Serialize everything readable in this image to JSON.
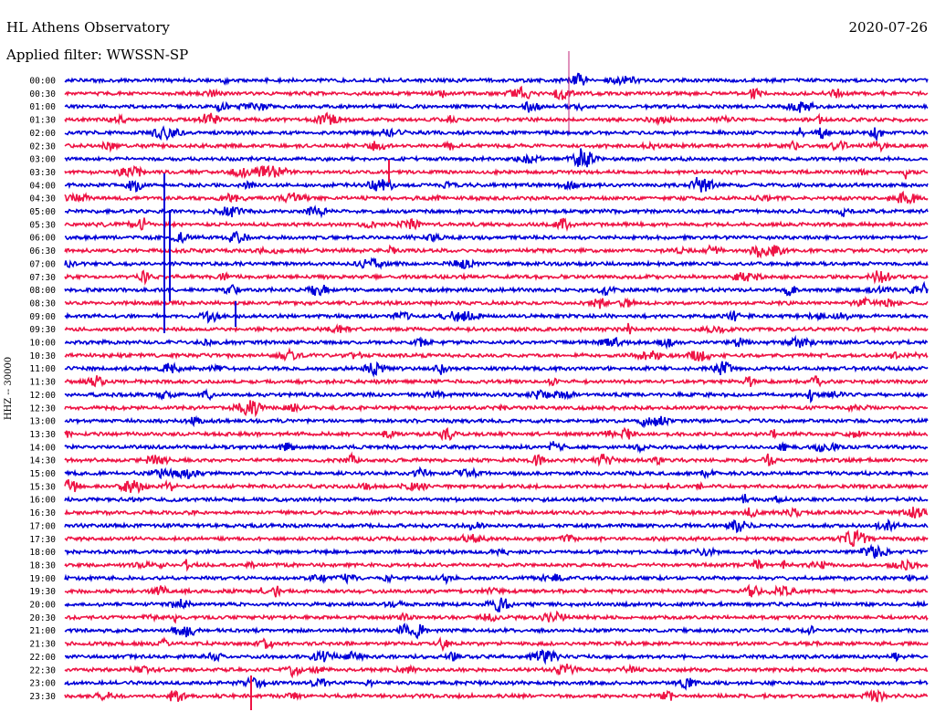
{
  "header": {
    "station": "HL Athens Observatory",
    "filter": "Applied filter: WWSSN-SP",
    "date": "2020-07-26",
    "channel": "HHZ -- 30000"
  },
  "chart_data": {
    "type": "line",
    "title": "HL Athens Observatory",
    "subtitle": "Applied filter: WWSSN-SP",
    "date": "2020-07-26",
    "ylabel": "HHZ -- 30000",
    "rows": [
      "00:00",
      "00:30",
      "01:00",
      "01:30",
      "02:00",
      "02:30",
      "03:00",
      "03:30",
      "04:00",
      "04:30",
      "05:00",
      "05:30",
      "06:00",
      "06:30",
      "07:00",
      "07:30",
      "08:00",
      "08:30",
      "09:00",
      "09:30",
      "10:00",
      "10:30",
      "11:00",
      "11:30",
      "12:00",
      "12:30",
      "13:00",
      "13:30",
      "14:00",
      "14:30",
      "15:00",
      "15:30",
      "16:00",
      "16:30",
      "17:00",
      "17:30",
      "18:00",
      "18:30",
      "19:00",
      "19:30",
      "20:00",
      "20:30",
      "21:00",
      "21:30",
      "22:00",
      "22:30",
      "23:00",
      "23:30"
    ],
    "colors": [
      "#0000d8",
      "#ee1445"
    ],
    "grid": false,
    "legend": "none"
  }
}
